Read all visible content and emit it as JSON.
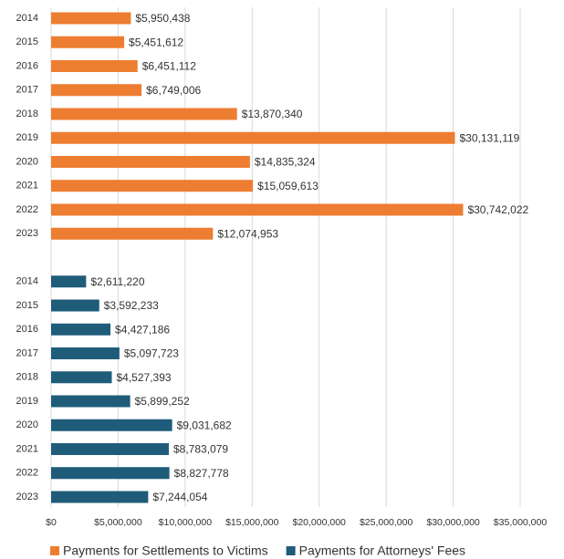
{
  "chart_data": {
    "type": "bar",
    "orientation": "horizontal",
    "categories": [
      "2014",
      "2015",
      "2016",
      "2017",
      "2018",
      "2019",
      "2020",
      "2021",
      "2022",
      "2023",
      null,
      "2014",
      "2015",
      "2016",
      "2017",
      "2018",
      "2019",
      "2020",
      "2021",
      "2022",
      "2023"
    ],
    "series": [
      {
        "name": "Payments for Settlements to Victims",
        "color": "#ED7D31",
        "values": [
          5950438,
          5451612,
          6451112,
          6749006,
          13870340,
          30131119,
          14835324,
          15059613,
          30742022,
          12074953,
          null,
          null,
          null,
          null,
          null,
          null,
          null,
          null,
          null,
          null,
          null
        ],
        "value_labels": [
          "$5,950,438",
          "$5,451,612",
          "$6,451,112",
          "$6,749,006",
          "$13,870,340",
          "$30,131,119",
          "$14,835,324",
          "$15,059,613",
          "$30,742,022",
          "$12,074,953",
          null,
          null,
          null,
          null,
          null,
          null,
          null,
          null,
          null,
          null,
          null
        ]
      },
      {
        "name": "Payments for Attorneys' Fees",
        "color": "#1F5C7A",
        "values": [
          null,
          null,
          null,
          null,
          null,
          null,
          null,
          null,
          null,
          null,
          null,
          2611220,
          3592233,
          4427186,
          5097723,
          4527393,
          5899252,
          9031682,
          8783079,
          8827778,
          7244054
        ],
        "value_labels": [
          null,
          null,
          null,
          null,
          null,
          null,
          null,
          null,
          null,
          null,
          null,
          "$2,611,220",
          "$3,592,233",
          "$4,427,186",
          "$5,097,723",
          "$4,527,393",
          "$5,899,252",
          "$9,031,682",
          "$8,783,079",
          "$8,827,778",
          "$7,244,054"
        ]
      }
    ],
    "xlim": [
      0,
      35000000
    ],
    "xticks": [
      {
        "value": 0,
        "label": "$0"
      },
      {
        "value": 5000000,
        "label": "$5,000,000"
      },
      {
        "value": 10000000,
        "label": "$10,000,000"
      },
      {
        "value": 15000000,
        "label": "$15,000,000"
      },
      {
        "value": 20000000,
        "label": "$20,000,000"
      },
      {
        "value": 25000000,
        "label": "$25,000,000"
      },
      {
        "value": 30000000,
        "label": "$30,000,000"
      },
      {
        "value": 35000000,
        "label": "$35,000,000"
      }
    ],
    "grid": true,
    "legend": "bottom"
  }
}
